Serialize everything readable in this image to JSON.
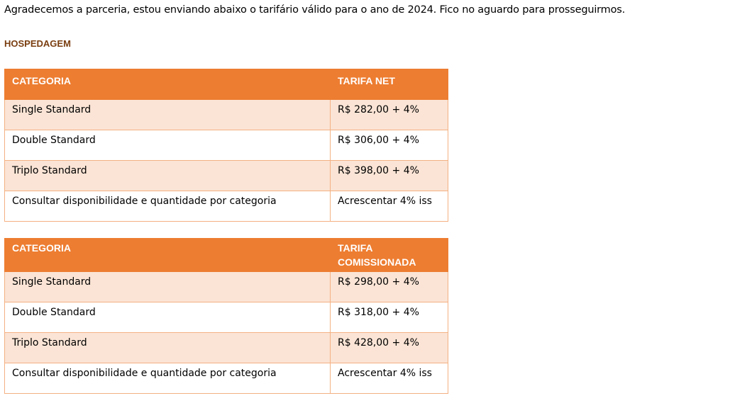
{
  "intro": "Agradecemos a parceria, estou enviando abaixo o tarifário válido para o ano de 2024. Fico no aguardo para prosseguirmos.",
  "section_title": "HOSPEDAGEM",
  "tables": [
    {
      "headers": [
        "CATEGORIA",
        "TARIFA NET"
      ],
      "rows": [
        [
          "Single Standard",
          "R$ 282,00 + 4%"
        ],
        [
          "Double Standard",
          "R$ 306,00 + 4%"
        ],
        [
          "Triplo Standard",
          "R$ 398,00 + 4%"
        ],
        [
          "Consultar disponibilidade e quantidade por categoria",
          "Acrescentar 4% iss"
        ]
      ]
    },
    {
      "headers": [
        "CATEGORIA",
        "TARIFA COMISSIONADA"
      ],
      "rows": [
        [
          "Single Standard",
          "R$ 298,00 + 4%"
        ],
        [
          "Double Standard",
          "R$ 318,00 + 4%"
        ],
        [
          "Triplo Standard",
          "R$ 428,00 + 4%"
        ],
        [
          "Consultar disponibilidade e quantidade por categoria",
          "Acrescentar 4% iss"
        ]
      ]
    }
  ],
  "colors": {
    "header_bg": "#ed7d31",
    "band_bg": "#fbe4d5",
    "border": "#f4b183",
    "section": "#7a3e10"
  }
}
